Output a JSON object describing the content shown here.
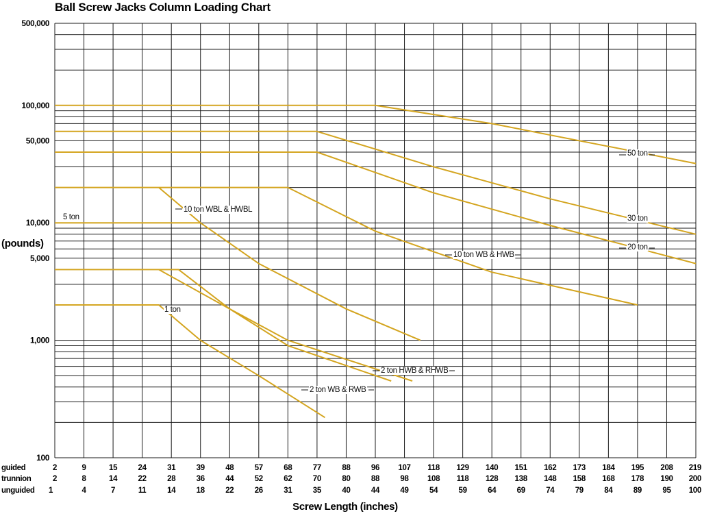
{
  "chart_data": {
    "type": "line",
    "title": "Ball Screw Jacks Column Loading Chart",
    "xlabel": "Screw Length (inches)",
    "ylabel": "(pounds)",
    "yscale": "log",
    "ylim": [
      100,
      500000
    ],
    "y_tick_labels": [
      {
        "value": 500000,
        "label": "500,000"
      },
      {
        "value": 100000,
        "label": "100,000"
      },
      {
        "value": 50000,
        "label": "50,000"
      },
      {
        "value": 10000,
        "label": "10,000"
      },
      {
        "value": 5000,
        "label": "5,000"
      },
      {
        "value": 1000,
        "label": "1,000"
      },
      {
        "value": 100,
        "label": "100"
      }
    ],
    "x_rows": [
      {
        "label": "guided",
        "values": [
          "2",
          "9",
          "15",
          "24",
          "31",
          "39",
          "48",
          "57",
          "68",
          "77",
          "88",
          "96",
          "107",
          "118",
          "129",
          "140",
          "151",
          "162",
          "173",
          "184",
          "195",
          "208",
          "219"
        ]
      },
      {
        "label": "trunnion",
        "values": [
          "2",
          "8",
          "14",
          "22",
          "28",
          "36",
          "44",
          "52",
          "62",
          "70",
          "80",
          "88",
          "98",
          "108",
          "118",
          "128",
          "138",
          "148",
          "158",
          "168",
          "178",
          "190",
          "200"
        ]
      },
      {
        "label": "unguided",
        "values": [
          "1",
          "4",
          "7",
          "11",
          "14",
          "18",
          "22",
          "26",
          "31",
          "35",
          "40",
          "44",
          "49",
          "54",
          "59",
          "64",
          "69",
          "74",
          "79",
          "84",
          "89",
          "95",
          "100"
        ]
      }
    ],
    "x_unit": "guided screw length (inches)",
    "grid": true,
    "series": [
      {
        "name": "50 ton",
        "points": [
          [
            2,
            100000
          ],
          [
            96,
            100000
          ],
          [
            140,
            70000
          ],
          [
            219,
            32000
          ]
        ]
      },
      {
        "name": "30 ton",
        "points": [
          [
            2,
            60000
          ],
          [
            77,
            60000
          ],
          [
            118,
            30000
          ],
          [
            162,
            16000
          ],
          [
            219,
            8000
          ]
        ]
      },
      {
        "name": "20 ton",
        "points": [
          [
            2,
            40000
          ],
          [
            77,
            40000
          ],
          [
            118,
            18000
          ],
          [
            162,
            9500
          ],
          [
            219,
            4500
          ]
        ]
      },
      {
        "name": "10 ton WB & HWB",
        "points": [
          [
            2,
            20000
          ],
          [
            68,
            20000
          ],
          [
            96,
            8500
          ],
          [
            140,
            3800
          ],
          [
            195,
            2000
          ]
        ]
      },
      {
        "name": "10 ton WBL & HWBL",
        "points": [
          [
            28,
            20000
          ],
          [
            39,
            10000
          ],
          [
            57,
            4500
          ],
          [
            88,
            1850
          ],
          [
            113,
            1000
          ]
        ]
      },
      {
        "name": "5 ton",
        "points": [
          [
            2,
            10000
          ],
          [
            39,
            10000
          ]
        ]
      },
      {
        "name": "2 ton HWB & RHWB",
        "points": [
          [
            2,
            4000
          ],
          [
            33,
            4000
          ],
          [
            48,
            1850
          ],
          [
            68,
            1000
          ],
          [
            110,
            450
          ]
        ]
      },
      {
        "name": "2 ton WB & RWB",
        "points": [
          [
            28,
            4000
          ],
          [
            48,
            1850
          ],
          [
            68,
            900
          ],
          [
            102,
            450
          ]
        ]
      },
      {
        "name": "1 ton",
        "points": [
          [
            2,
            2000
          ],
          [
            28,
            2000
          ],
          [
            39,
            1000
          ],
          [
            57,
            500
          ],
          [
            80,
            220
          ]
        ]
      }
    ],
    "annotations": [
      {
        "text": "50 ton"
      },
      {
        "text": "30 ton"
      },
      {
        "text": "20 ton"
      },
      {
        "text": "10 ton WB & HWB"
      },
      {
        "text": "10 ton WBL & HWBL"
      },
      {
        "text": "5 ton"
      },
      {
        "text": "2 ton HWB & RHWB"
      },
      {
        "text": "2 ton WB & RWB"
      },
      {
        "text": "1 ton"
      }
    ],
    "colors": {
      "series": "#d4a520",
      "grid": "#1a1a1a"
    }
  }
}
